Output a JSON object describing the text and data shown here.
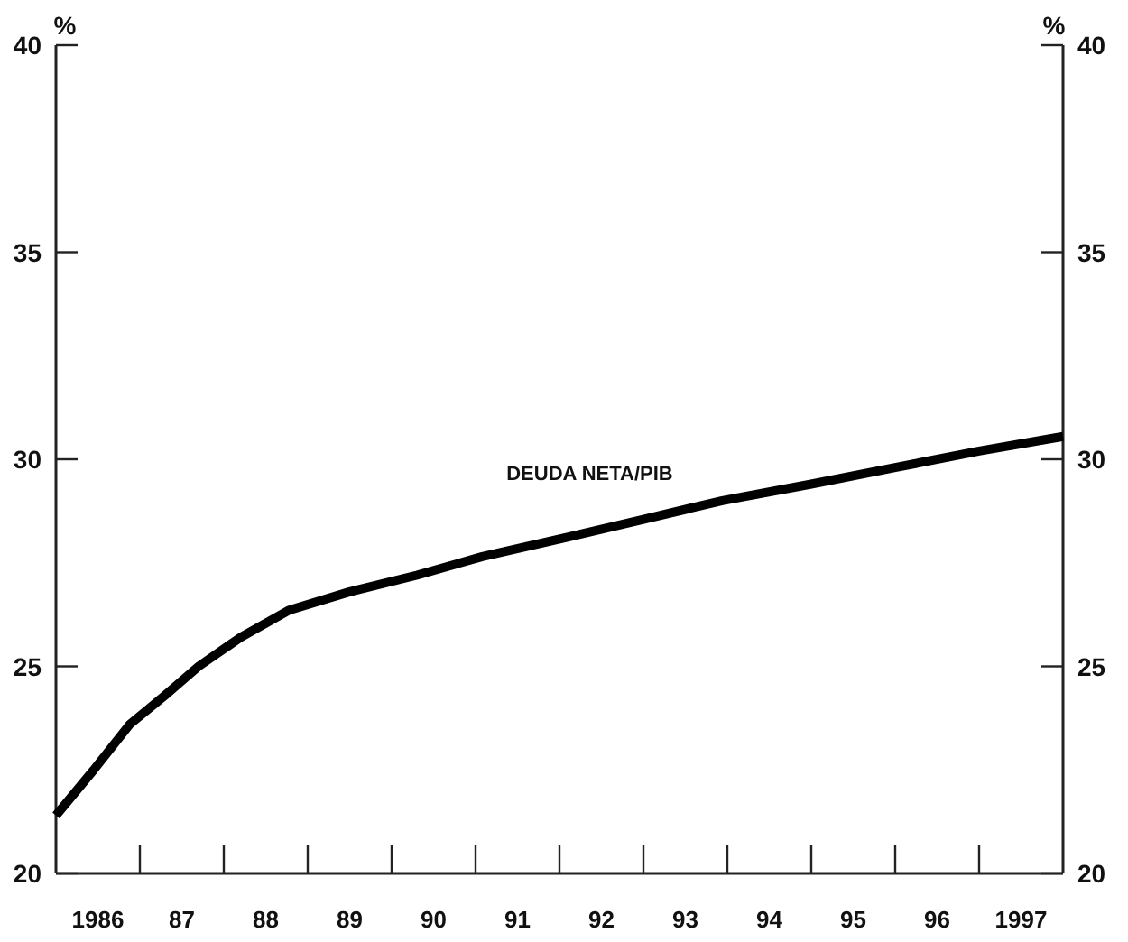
{
  "chart_data": {
    "type": "line",
    "ylabel": "%",
    "y2label": "%",
    "x": [
      1985.5,
      1985.95,
      1986.38,
      1986.8,
      1987.2,
      1987.7,
      1988.27,
      1989,
      1989.8,
      1990.58,
      1991.56,
      1992.5,
      1993.44,
      1994.5,
      1995.5,
      1996.5,
      1997.5
    ],
    "series": [
      {
        "color": "#000000",
        "values": [
          21.4,
          22.5,
          23.6,
          24.3,
          25.0,
          25.7,
          26.35,
          26.8,
          27.2,
          27.65,
          28.1,
          28.55,
          29.0,
          29.4,
          29.8,
          30.2,
          30.55
        ]
      }
    ],
    "xlim": [
      1985.5,
      1997.5
    ],
    "xticks": [
      {
        "value": 1986,
        "label": "1986"
      },
      {
        "value": 1986.5,
        "label": null
      },
      {
        "value": 1987,
        "label": "87"
      },
      {
        "value": 1987.5,
        "label": null
      },
      {
        "value": 1988,
        "label": "88"
      },
      {
        "value": 1988.5,
        "label": null
      },
      {
        "value": 1989,
        "label": "89"
      },
      {
        "value": 1989.5,
        "label": null
      },
      {
        "value": 1990,
        "label": "90"
      },
      {
        "value": 1990.5,
        "label": null
      },
      {
        "value": 1991,
        "label": "91"
      },
      {
        "value": 1991.5,
        "label": null
      },
      {
        "value": 1992,
        "label": "92"
      },
      {
        "value": 1992.5,
        "label": null
      },
      {
        "value": 1993,
        "label": "93"
      },
      {
        "value": 1993.5,
        "label": null
      },
      {
        "value": 1994,
        "label": "94"
      },
      {
        "value": 1994.5,
        "label": null
      },
      {
        "value": 1995,
        "label": "95"
      },
      {
        "value": 1995.5,
        "label": null
      },
      {
        "value": 1996,
        "label": "96"
      },
      {
        "value": 1996.5,
        "label": null
      },
      {
        "value": 1997,
        "label": "1997"
      }
    ],
    "ylim": [
      20,
      40
    ],
    "yticks": [
      20,
      25,
      30,
      35,
      40
    ],
    "y2lim": [
      20,
      40
    ],
    "y2ticks": [
      20,
      25,
      30,
      35,
      40
    ],
    "annotations": [
      "DEUDA NETA/PIB"
    ]
  }
}
